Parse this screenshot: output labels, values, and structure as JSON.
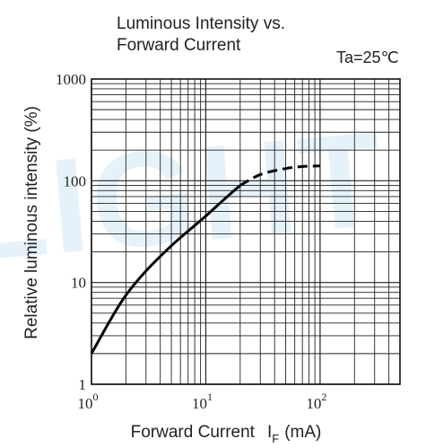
{
  "chart_data": {
    "type": "line",
    "title_lines": [
      "Luminous Intensity vs.",
      "Forward Current"
    ],
    "condition": "Ta=25℃",
    "xlabel": "Forward Current",
    "xlabel_symbol": "I",
    "xlabel_subscript": "F",
    "xlabel_unit": "(mA)",
    "ylabel": "Relative luminous intensity  (%)",
    "x_scale": "log",
    "y_scale": "log",
    "xlim": [
      1,
      500
    ],
    "ylim": [
      1,
      1000
    ],
    "x_ticks": [
      {
        "value": 1,
        "base": "10",
        "exp": "0"
      },
      {
        "value": 10,
        "base": "10",
        "exp": "1"
      },
      {
        "value": 100,
        "base": "10",
        "exp": "2"
      }
    ],
    "y_ticks": [
      {
        "value": 1,
        "label": "1"
      },
      {
        "value": 10,
        "label": "10"
      },
      {
        "value": 100,
        "label": "100"
      },
      {
        "value": 1000,
        "label": "1000"
      }
    ],
    "grid": true,
    "series": [
      {
        "style": "solid",
        "x": [
          1,
          1.5,
          2,
          3,
          5,
          7,
          10,
          15,
          20
        ],
        "y": [
          2,
          4.5,
          7.5,
          13,
          23,
          32,
          45,
          68,
          90
        ]
      },
      {
        "style": "dashed",
        "x": [
          20,
          30,
          50,
          70,
          100
        ],
        "y": [
          90,
          115,
          132,
          138,
          140
        ]
      }
    ],
    "watermark": "LIGHT"
  }
}
